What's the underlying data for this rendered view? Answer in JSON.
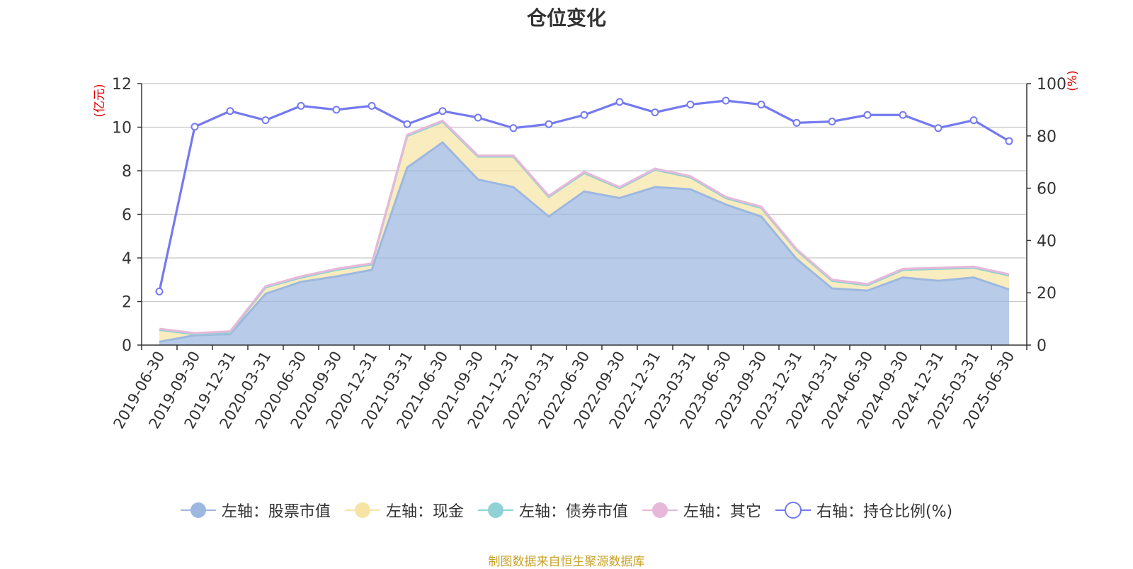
{
  "chart_data": {
    "type": "area",
    "title": "仓位变化",
    "left_axis_label": "(亿元)",
    "right_axis_label": "(%)",
    "categories": [
      "2019-06-30",
      "2019-09-30",
      "2019-12-31",
      "2020-03-31",
      "2020-06-30",
      "2020-09-30",
      "2020-12-31",
      "2021-03-31",
      "2021-06-30",
      "2021-09-30",
      "2021-12-31",
      "2022-03-31",
      "2022-06-30",
      "2022-09-30",
      "2022-12-31",
      "2023-03-31",
      "2023-06-30",
      "2023-09-30",
      "2023-12-31",
      "2024-03-31",
      "2024-06-30",
      "2024-09-30",
      "2024-12-31",
      "2025-03-31",
      "2025-06-30"
    ],
    "left_ylim": [
      0,
      12
    ],
    "left_ticks": [
      0,
      2,
      4,
      6,
      8,
      10,
      12
    ],
    "right_ylim": [
      0,
      100
    ],
    "right_ticks": [
      0,
      20,
      40,
      60,
      80,
      100
    ],
    "grid": true,
    "legend_position": "bottom",
    "series": [
      {
        "name": "左轴：股票市值",
        "axis": "left",
        "color": "#9db8e0",
        "values": [
          0.15,
          0.45,
          0.5,
          2.35,
          2.9,
          3.15,
          3.45,
          8.15,
          9.3,
          7.6,
          7.25,
          5.9,
          7.05,
          6.75,
          7.25,
          7.15,
          6.45,
          5.9,
          3.95,
          2.6,
          2.5,
          3.1,
          2.95,
          3.1,
          2.55
        ]
      },
      {
        "name": "左轴：现金",
        "axis": "left",
        "color": "#f7e4a5",
        "values": [
          0.55,
          0.05,
          0.08,
          0.3,
          0.2,
          0.3,
          0.25,
          1.45,
          0.95,
          1.05,
          1.4,
          0.9,
          0.85,
          0.45,
          0.8,
          0.55,
          0.3,
          0.4,
          0.4,
          0.35,
          0.25,
          0.35,
          0.55,
          0.45,
          0.65
        ]
      },
      {
        "name": "左轴：债券市值",
        "axis": "left",
        "color": "#8fd1d4",
        "values": [
          0,
          0,
          0,
          0,
          0,
          0,
          0,
          0,
          0,
          0,
          0,
          0,
          0,
          0,
          0,
          0,
          0,
          0,
          0,
          0,
          0,
          0,
          0,
          0,
          0
        ]
      },
      {
        "name": "左轴：其它",
        "axis": "left",
        "color": "#e7b8da",
        "values": [
          0.05,
          0.05,
          0.05,
          0.05,
          0.05,
          0.05,
          0.05,
          0.05,
          0.05,
          0.05,
          0.05,
          0.05,
          0.05,
          0.05,
          0.05,
          0.05,
          0.05,
          0.05,
          0.05,
          0.05,
          0.05,
          0.05,
          0.05,
          0.05,
          0.05
        ]
      },
      {
        "name": "右轴：持仓比例(%)",
        "axis": "right",
        "color": "#7479f0",
        "values": [
          20.5,
          83.5,
          89.5,
          86,
          91.5,
          90,
          91.5,
          84.5,
          89.5,
          87,
          83,
          84.5,
          88,
          93,
          89,
          92,
          93.5,
          92,
          85,
          85.5,
          88,
          88,
          83,
          86,
          78
        ]
      }
    ]
  },
  "source_text": "制图数据来自恒生聚源数据库"
}
